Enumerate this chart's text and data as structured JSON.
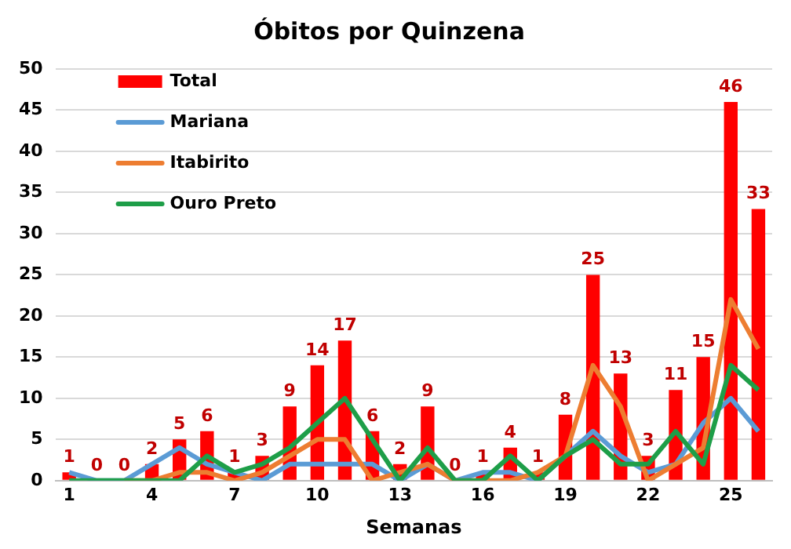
{
  "chart_data": {
    "type": "bar",
    "title": "Óbitos por Quinzena",
    "xlabel": "Semanas",
    "categories": [
      "1",
      null,
      null,
      "4",
      null,
      null,
      "7",
      null,
      null,
      "10",
      null,
      null,
      "13",
      null,
      null,
      "16",
      null,
      null,
      "19",
      null,
      null,
      "22",
      null,
      null,
      "25",
      null
    ],
    "series": [
      {
        "name": "Total",
        "color": "#ff0000",
        "values": [
          1,
          0,
          0,
          2,
          5,
          6,
          1,
          3,
          9,
          14,
          17,
          6,
          2,
          9,
          0,
          1,
          4,
          1,
          8,
          25,
          13,
          3,
          11,
          15,
          46,
          33
        ],
        "value_labels": [
          "1",
          "0",
          "0",
          "2",
          "5",
          "6",
          "1",
          "3",
          "9",
          "14",
          "17",
          "6",
          "2",
          "9",
          "0",
          "1",
          "4",
          "1",
          "8",
          "25",
          "13",
          "3",
          "11",
          "15",
          "46",
          "33"
        ]
      },
      {
        "name": "Mariana",
        "type": "line",
        "color": "#5b9bd5",
        "values": [
          1,
          0,
          0,
          2,
          4,
          2,
          1,
          0,
          2,
          2,
          2,
          2,
          0,
          2,
          0,
          1,
          1,
          0,
          3,
          6,
          3,
          1,
          2,
          7,
          10,
          6
        ]
      },
      {
        "name": "Itabirito",
        "type": "line",
        "color": "#ed7d31",
        "values": [
          null,
          null,
          0,
          0,
          1,
          1,
          0,
          1,
          3,
          5,
          5,
          0,
          1,
          2,
          0,
          0,
          0,
          1,
          3,
          14,
          9,
          0,
          2,
          4,
          22,
          16
        ]
      },
      {
        "name": "Ouro Preto",
        "type": "line",
        "color": "#1e9e48",
        "values": [
          0,
          0,
          0,
          0,
          0,
          3,
          1,
          2,
          4,
          7,
          10,
          5,
          0,
          4,
          0,
          0,
          3,
          0,
          3,
          5,
          2,
          2,
          6,
          2,
          14,
          11
        ]
      }
    ],
    "ylim": [
      0,
      50
    ],
    "yticks": [
      0,
      5,
      10,
      15,
      20,
      25,
      30,
      35,
      40,
      45,
      50
    ],
    "grid": "y",
    "legend": "top left",
    "marker": "none",
    "line_style": "solid"
  }
}
